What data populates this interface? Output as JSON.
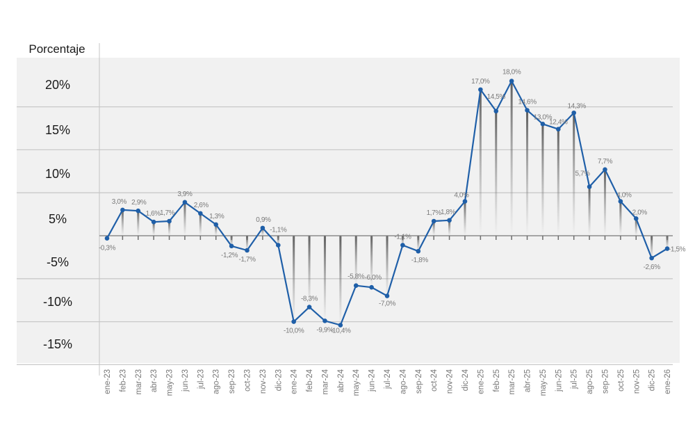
{
  "chart_data": {
    "type": "line",
    "title": "",
    "ylabel": "Porcentaje",
    "xlabel": "",
    "ylim": [
      -15,
      20
    ],
    "yticks": [
      20,
      15,
      10,
      5,
      -5,
      -10,
      -15
    ],
    "ytick_labels": [
      "20%",
      "15%",
      "10%",
      "5%",
      "-5%",
      "-10%",
      "-15%"
    ],
    "grid": true,
    "legend": null,
    "line_color": "#1f5fa8",
    "background_color": "#f1f1f1",
    "categories": [
      "ene-23",
      "feb-23",
      "mar-23",
      "abr-23",
      "may-23",
      "jun-23",
      "jul-23",
      "ago-23",
      "sep-23",
      "oct-23",
      "nov-23",
      "dic-23",
      "ene-24",
      "feb-24",
      "mar-24",
      "abr-24",
      "may-24",
      "jun-24",
      "jul-24",
      "ago-24",
      "sep-24",
      "oct-24",
      "nov-24",
      "dic-24",
      "ene-25",
      "feb-25",
      "mar-25",
      "abr-25",
      "may-25",
      "jun-25",
      "jul-25",
      "ago-25",
      "sep-25",
      "oct-25",
      "nov-25",
      "dic-25",
      "ene-26"
    ],
    "values": [
      -0.3,
      3.0,
      2.9,
      1.6,
      1.7,
      3.9,
      2.6,
      1.3,
      -1.2,
      -1.7,
      0.9,
      -1.1,
      -10.0,
      -8.3,
      -9.9,
      -10.4,
      -5.8,
      -6.0,
      -7.0,
      -1.1,
      -1.8,
      1.7,
      1.8,
      4.0,
      17.0,
      14.5,
      18.0,
      14.6,
      13.0,
      12.4,
      14.3,
      5.7,
      7.7,
      4.0,
      2.0,
      -2.6,
      -1.5
    ],
    "data_labels": [
      "-0,3%",
      "3,0%",
      "2,9%",
      "1,6%",
      "1,7%",
      "3,9%",
      "2,6%",
      "1,3%",
      "-1,2%",
      "-1,7%",
      "0,9%",
      "-1,1%",
      "-10,0%",
      "-8,3%",
      "-9,9%",
      "-10,4%",
      "-5,8%",
      "-6,0%",
      "-7,0%",
      "-1,1%",
      "-1,8%",
      "1,7%",
      "1,8%",
      "4,0%",
      "17,0%",
      "14,5%",
      "18,0%",
      "14,6%",
      "13,0%",
      "12,4%",
      "14,3%",
      "5,7%",
      "7,7%",
      "4,0%",
      "2,0%",
      "-2,6%",
      "-1,5%"
    ]
  }
}
